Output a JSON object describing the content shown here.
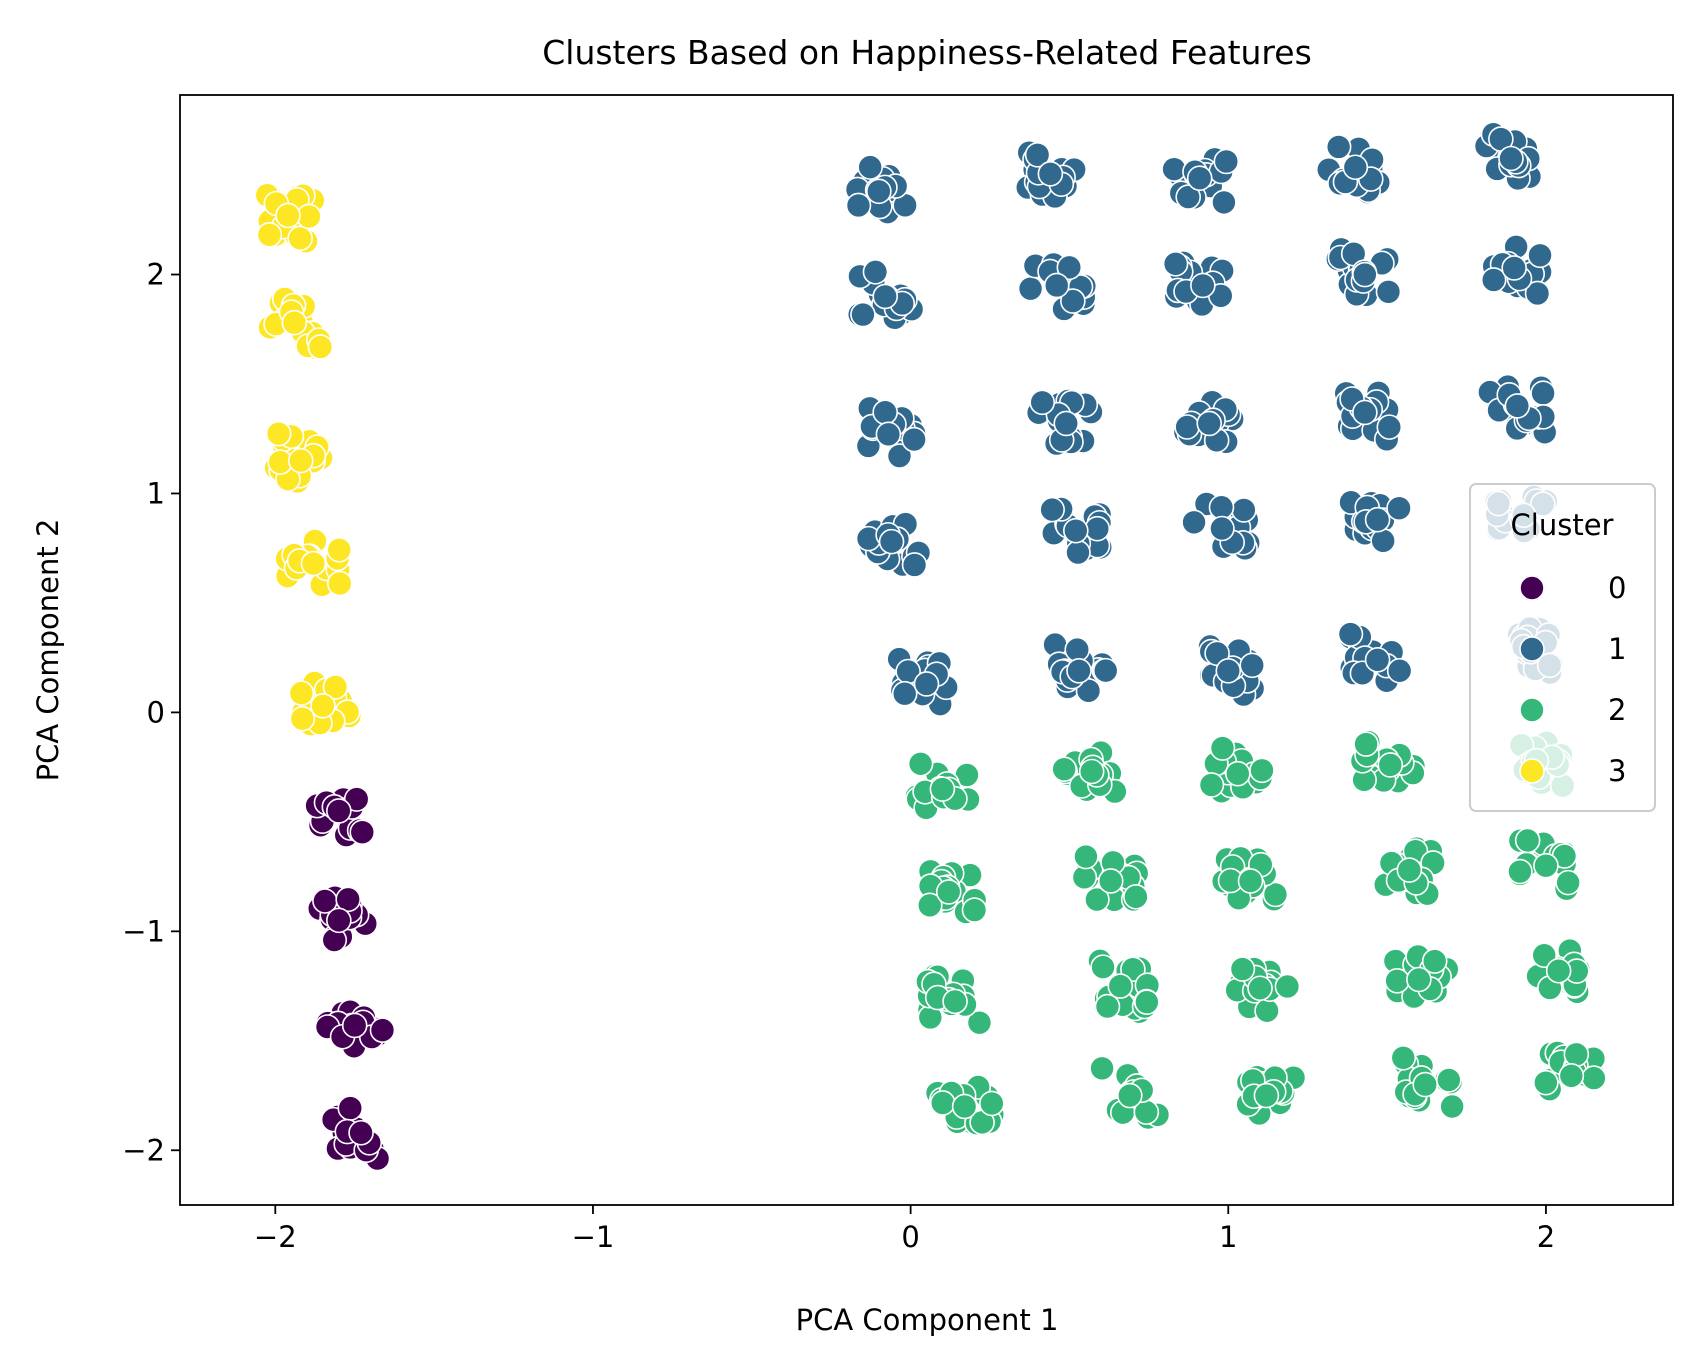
{
  "chart_data": {
    "type": "scatter",
    "title": "Clusters Based on Happiness-Related Features",
    "xlabel": "PCA Component 1",
    "ylabel": "PCA Component 2",
    "xlim": [
      -2.3,
      2.4
    ],
    "ylim": [
      -2.25,
      2.82
    ],
    "xticks": [
      -2,
      -1,
      0,
      1,
      2
    ],
    "yticks": [
      -2,
      -1,
      0,
      1,
      2
    ],
    "xtick_labels": [
      "−2",
      "−1",
      "0",
      "1",
      "2"
    ],
    "ytick_labels": [
      "−2",
      "−1",
      "0",
      "1",
      "2"
    ],
    "grid": false,
    "legend": {
      "title": "Cluster",
      "placement": "right",
      "entries": [
        {
          "label": "0",
          "color": "#440154"
        },
        {
          "label": "1",
          "color": "#31688e"
        },
        {
          "label": "2",
          "color": "#35b779"
        },
        {
          "label": "3",
          "color": "#fde725"
        }
      ]
    },
    "series": [
      {
        "name": "0",
        "color": "#440154",
        "points": [
          {
            "x": -1.8,
            "y": -0.45
          },
          {
            "x": -1.8,
            "y": -0.95
          },
          {
            "x": -1.75,
            "y": -1.43
          },
          {
            "x": -1.73,
            "y": -1.92
          }
        ]
      },
      {
        "name": "1",
        "color": "#31688e",
        "points": [
          {
            "x": -0.1,
            "y": 2.38
          },
          {
            "x": 0.44,
            "y": 2.46
          },
          {
            "x": 0.91,
            "y": 2.44
          },
          {
            "x": 1.4,
            "y": 2.49
          },
          {
            "x": 1.89,
            "y": 2.53
          },
          {
            "x": -0.08,
            "y": 1.9
          },
          {
            "x": 0.46,
            "y": 1.95
          },
          {
            "x": 0.92,
            "y": 1.95
          },
          {
            "x": 1.43,
            "y": 2.0
          },
          {
            "x": 1.9,
            "y": 2.03
          },
          {
            "x": -0.07,
            "y": 1.27
          },
          {
            "x": 0.49,
            "y": 1.32
          },
          {
            "x": 0.94,
            "y": 1.32
          },
          {
            "x": 1.43,
            "y": 1.37
          },
          {
            "x": 1.91,
            "y": 1.4
          },
          {
            "x": -0.06,
            "y": 0.78
          },
          {
            "x": 0.52,
            "y": 0.83
          },
          {
            "x": 0.98,
            "y": 0.84
          },
          {
            "x": 1.47,
            "y": 0.88
          },
          {
            "x": 1.93,
            "y": 0.9
          },
          {
            "x": 0.05,
            "y": 0.13
          },
          {
            "x": 0.53,
            "y": 0.19
          },
          {
            "x": 1.0,
            "y": 0.19
          },
          {
            "x": 1.47,
            "y": 0.24
          },
          {
            "x": 1.93,
            "y": 0.3
          }
        ]
      },
      {
        "name": "2",
        "color": "#35b779",
        "points": [
          {
            "x": 0.1,
            "y": -0.35
          },
          {
            "x": 0.57,
            "y": -0.27
          },
          {
            "x": 1.03,
            "y": -0.28
          },
          {
            "x": 1.51,
            "y": -0.24
          },
          {
            "x": 1.97,
            "y": -0.22
          },
          {
            "x": 0.12,
            "y": -0.82
          },
          {
            "x": 0.63,
            "y": -0.77
          },
          {
            "x": 1.07,
            "y": -0.77
          },
          {
            "x": 1.57,
            "y": -0.72
          },
          {
            "x": 2.0,
            "y": -0.7
          },
          {
            "x": 0.14,
            "y": -1.32
          },
          {
            "x": 0.66,
            "y": -1.25
          },
          {
            "x": 1.1,
            "y": -1.26
          },
          {
            "x": 1.6,
            "y": -1.22
          },
          {
            "x": 2.04,
            "y": -1.18
          },
          {
            "x": 0.17,
            "y": -1.8
          },
          {
            "x": 0.69,
            "y": -1.75
          },
          {
            "x": 1.12,
            "y": -1.75
          },
          {
            "x": 1.62,
            "y": -1.7
          },
          {
            "x": 2.08,
            "y": -1.66
          }
        ]
      },
      {
        "name": "3",
        "color": "#fde725",
        "points": [
          {
            "x": -1.96,
            "y": 2.27
          },
          {
            "x": -1.94,
            "y": 1.78
          },
          {
            "x": -1.92,
            "y": 1.15
          },
          {
            "x": -1.88,
            "y": 0.68
          },
          {
            "x": -1.85,
            "y": 0.03
          }
        ]
      }
    ]
  }
}
